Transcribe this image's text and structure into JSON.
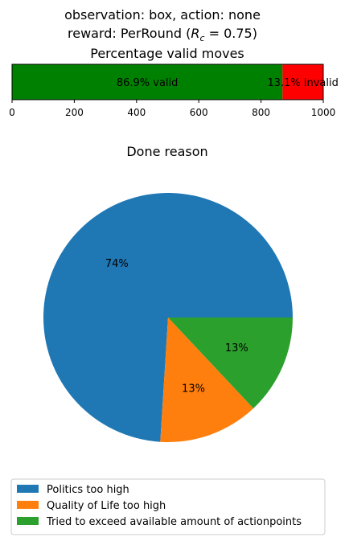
{
  "figure": {
    "title_line1": "observation: box, action: none",
    "title_line2_prefix": "reward: PerRound (",
    "title_line2_var": "R",
    "title_line2_sub": "c",
    "title_line2_suffix": " = 0.75)"
  },
  "chart_data": [
    {
      "type": "bar",
      "orientation": "horizontal",
      "stacked": true,
      "title": "Percentage valid moves",
      "xlim": [
        0,
        1000
      ],
      "xticks": [
        0,
        200,
        400,
        600,
        800,
        1000
      ],
      "xtick_labels": [
        "0",
        "200",
        "400",
        "600",
        "800",
        "1000"
      ],
      "grid": false,
      "segments": [
        {
          "name": "valid",
          "value": 869,
          "label": "86.9% valid",
          "color": "#008000"
        },
        {
          "name": "invalid",
          "value": 131,
          "label": "13.1% invalid",
          "color": "#ff0000"
        }
      ]
    },
    {
      "type": "pie",
      "title": "Done reason",
      "start_angle_deg": 0,
      "direction": "counterclockwise",
      "legend_position": "lower-center",
      "slices": [
        {
          "label": "Politics too high",
          "value": 74,
          "pct_label": "74%",
          "color": "#1f77b4"
        },
        {
          "label": "Quality of Life too high",
          "value": 13,
          "pct_label": "13%",
          "color": "#ff7f0e"
        },
        {
          "label": "Tried to exceed available amount of actionpoints",
          "value": 13,
          "pct_label": "13%",
          "color": "#2ca02c"
        }
      ]
    }
  ]
}
